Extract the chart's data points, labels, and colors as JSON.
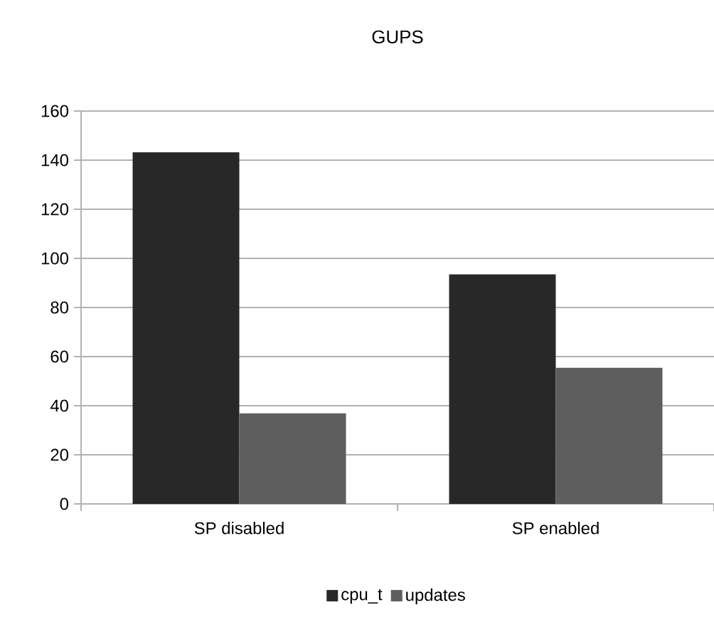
{
  "chart_data": {
    "type": "bar",
    "title": "GUPS",
    "categories": [
      "SP disabled",
      "SP enabled"
    ],
    "series": [
      {
        "name": "cpu_t",
        "color": "#282828",
        "values": [
          143.2,
          93.5
        ]
      },
      {
        "name": "updates",
        "color": "#5e5e5e",
        "values": [
          36.9,
          55.4
        ]
      }
    ],
    "ylim": [
      0,
      160
    ],
    "yticks": [
      0,
      20,
      40,
      60,
      80,
      100,
      120,
      140,
      160
    ],
    "grid": "y",
    "legend": "bottom"
  }
}
